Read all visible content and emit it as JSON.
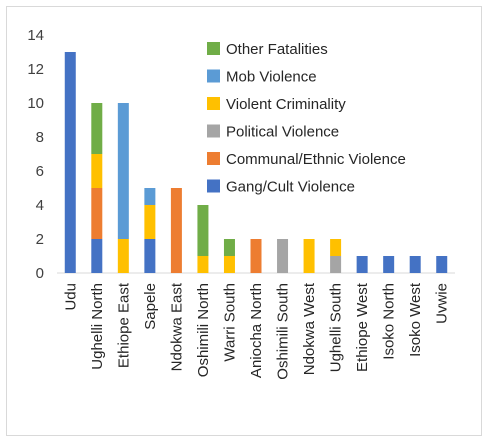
{
  "chart_data": {
    "type": "bar",
    "stacked": true,
    "categories": [
      "Udu",
      "Ughelli North",
      "Ethiope East",
      "Sapele",
      "Ndokwa East",
      "Oshimili North",
      "Warri South",
      "Aniocha North",
      "Oshimili South",
      "Ndokwa West",
      "Ughelli South",
      "Ethiope West",
      "Isoko North",
      "Isoko West",
      "Uvwie"
    ],
    "series": [
      {
        "name": "Gang/Cult Violence",
        "color": "#4472c4",
        "values": [
          13,
          2,
          0,
          2,
          0,
          0,
          0,
          0,
          0,
          0,
          0,
          1,
          1,
          1,
          1
        ]
      },
      {
        "name": "Communal/Ethnic Violence",
        "color": "#ed7d31",
        "values": [
          0,
          3,
          0,
          0,
          5,
          0,
          0,
          2,
          0,
          0,
          0,
          0,
          0,
          0,
          0
        ]
      },
      {
        "name": "Political Violence",
        "color": "#a5a5a5",
        "values": [
          0,
          0,
          0,
          0,
          0,
          0,
          0,
          0,
          2,
          0,
          1,
          0,
          0,
          0,
          0
        ]
      },
      {
        "name": "Violent Criminality",
        "color": "#ffc000",
        "values": [
          0,
          2,
          2,
          2,
          0,
          1,
          1,
          0,
          0,
          2,
          1,
          0,
          0,
          0,
          0
        ]
      },
      {
        "name": "Mob Violence",
        "color": "#5b9bd5",
        "values": [
          0,
          0,
          8,
          1,
          0,
          0,
          0,
          0,
          0,
          0,
          0,
          0,
          0,
          0,
          0
        ]
      },
      {
        "name": "Other Fatalities",
        "color": "#70ad47",
        "values": [
          0,
          3,
          0,
          0,
          0,
          3,
          1,
          0,
          0,
          0,
          0,
          0,
          0,
          0,
          0
        ]
      }
    ],
    "legend_order": [
      "Other Fatalities",
      "Mob Violence",
      "Violent Criminality",
      "Political Violence",
      "Communal/Ethnic Violence",
      "Gang/Cult Violence"
    ],
    "ylim": [
      0,
      14
    ],
    "yticks": [
      0,
      2,
      4,
      6,
      8,
      10,
      12,
      14
    ],
    "grid": false,
    "legend_position": "top-right",
    "title": "",
    "xlabel": "",
    "ylabel": ""
  }
}
